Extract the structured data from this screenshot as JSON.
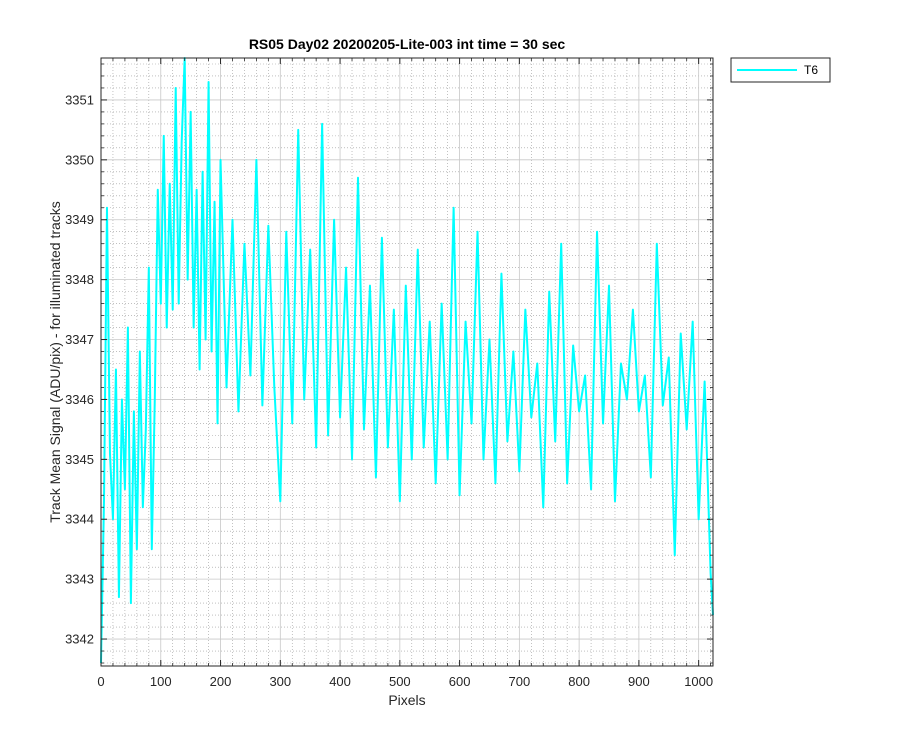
{
  "chart_data": {
    "type": "line",
    "title": "RS05 Day02 20200205-Lite-003 int time = 30 sec",
    "xlabel": "Pixels",
    "ylabel": "Track Mean Signal (ADU/pix) - for illuminated tracks",
    "xlim": [
      0,
      1024
    ],
    "ylim": [
      3341.55,
      3351.7
    ],
    "xticks": [
      0,
      100,
      200,
      300,
      400,
      500,
      600,
      700,
      800,
      900,
      1000
    ],
    "yticks": [
      3342,
      3343,
      3344,
      3345,
      3346,
      3347,
      3348,
      3349,
      3350,
      3351
    ],
    "grid": "major and minor",
    "legend_position": "outside-top-right",
    "series": [
      {
        "name": "T6",
        "color": "#00FFFF",
        "x": [
          0,
          5,
          10,
          15,
          20,
          25,
          30,
          35,
          40,
          45,
          50,
          55,
          60,
          65,
          70,
          75,
          80,
          85,
          90,
          95,
          100,
          105,
          110,
          115,
          120,
          125,
          130,
          135,
          140,
          145,
          150,
          155,
          160,
          165,
          170,
          175,
          180,
          185,
          190,
          195,
          200,
          210,
          220,
          230,
          240,
          250,
          260,
          270,
          280,
          290,
          300,
          310,
          320,
          330,
          340,
          350,
          360,
          370,
          380,
          390,
          400,
          410,
          420,
          430,
          440,
          450,
          460,
          470,
          480,
          490,
          500,
          510,
          520,
          530,
          540,
          550,
          560,
          570,
          580,
          590,
          600,
          610,
          620,
          630,
          640,
          650,
          660,
          670,
          680,
          690,
          700,
          710,
          720,
          730,
          740,
          750,
          760,
          770,
          780,
          790,
          800,
          810,
          820,
          830,
          840,
          850,
          860,
          870,
          880,
          890,
          900,
          910,
          920,
          930,
          940,
          950,
          960,
          970,
          980,
          990,
          1000,
          1010,
          1020,
          1024
        ],
        "y": [
          3341.6,
          3344.3,
          3349.2,
          3345.1,
          3344.0,
          3346.5,
          3342.7,
          3346.0,
          3344.5,
          3347.2,
          3342.6,
          3345.8,
          3343.5,
          3346.8,
          3344.2,
          3345.5,
          3348.2,
          3343.5,
          3346.0,
          3349.5,
          3347.6,
          3350.4,
          3347.2,
          3349.6,
          3347.5,
          3351.2,
          3347.6,
          3350.3,
          3351.7,
          3348.0,
          3350.8,
          3347.2,
          3349.5,
          3346.5,
          3349.8,
          3347.0,
          3351.3,
          3346.8,
          3349.3,
          3345.6,
          3350.0,
          3346.2,
          3349.0,
          3345.8,
          3348.6,
          3346.4,
          3350.0,
          3345.9,
          3348.9,
          3346.2,
          3344.3,
          3348.8,
          3345.6,
          3350.5,
          3346.0,
          3348.5,
          3345.2,
          3350.6,
          3345.4,
          3349.0,
          3345.7,
          3348.2,
          3345.0,
          3349.7,
          3345.5,
          3347.9,
          3344.7,
          3348.7,
          3345.2,
          3347.5,
          3344.3,
          3347.9,
          3345.0,
          3348.5,
          3345.2,
          3347.3,
          3344.6,
          3347.6,
          3345.0,
          3349.2,
          3344.4,
          3347.3,
          3345.6,
          3348.8,
          3345.0,
          3347.0,
          3344.6,
          3348.1,
          3345.3,
          3346.8,
          3344.8,
          3347.5,
          3345.7,
          3346.6,
          3344.2,
          3347.8,
          3345.3,
          3348.6,
          3344.6,
          3346.9,
          3345.8,
          3346.4,
          3344.5,
          3348.8,
          3345.6,
          3347.9,
          3344.3,
          3346.6,
          3346.0,
          3347.5,
          3345.8,
          3346.4,
          3344.7,
          3348.6,
          3345.9,
          3346.7,
          3343.4,
          3347.1,
          3345.5,
          3347.3,
          3344.0,
          3346.3,
          3343.1,
          3342.4
        ]
      }
    ]
  }
}
